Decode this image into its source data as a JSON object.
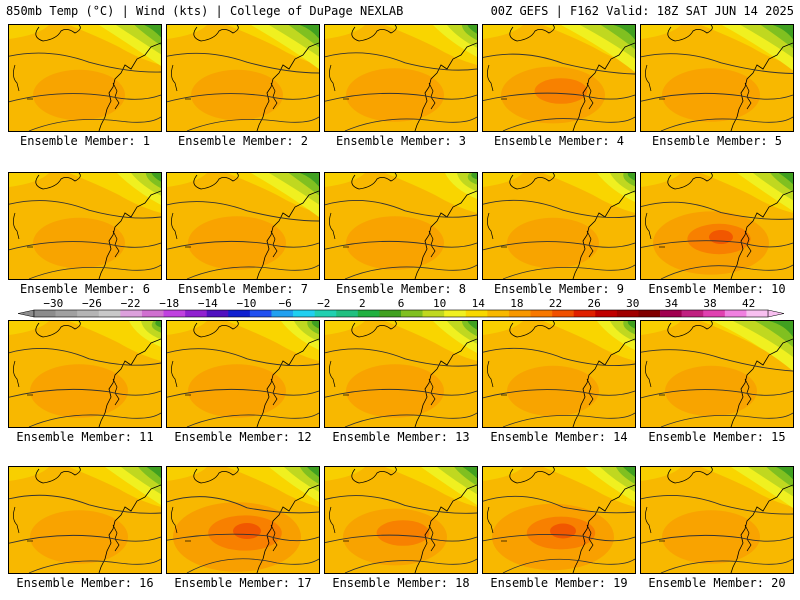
{
  "header": {
    "left": "850mb Temp (°C) | Wind (kts) | College of DuPage NEXLAB",
    "right": "00Z GEFS | F162 Valid: 18Z SAT JUN 14 2025"
  },
  "colorbar": {
    "labels": [
      "-30",
      "-26",
      "-22",
      "-18",
      "-14",
      "-10",
      "-6",
      "-2",
      "2",
      "6",
      "10",
      "14",
      "18",
      "22",
      "26",
      "30",
      "34",
      "38",
      "42"
    ],
    "colors": [
      "#8c8c8c",
      "#a0a0a0",
      "#b4b4b4",
      "#c8c8c8",
      "#dca0dc",
      "#d070d0",
      "#c040e0",
      "#9020d0",
      "#5010c0",
      "#1020d0",
      "#2050f0",
      "#20a0f0",
      "#20d0f0",
      "#20d0b0",
      "#20c080",
      "#20b040",
      "#40a020",
      "#80c020",
      "#c0d820",
      "#f0f020",
      "#f8d800",
      "#f8b800",
      "#f89800",
      "#f87800",
      "#f05000",
      "#e02000",
      "#c00000",
      "#a00000",
      "#800000",
      "#a00050",
      "#c02080",
      "#e040b0",
      "#f080e0",
      "#f8c0f0"
    ]
  },
  "palette": {
    "orange_light": "#f8b800",
    "orange_mid": "#f89800",
    "orange_dark": "#f87800",
    "red_orange": "#f05000",
    "yellow": "#f8d800",
    "yellow_bright": "#f0f020",
    "green_light": "#c0d820",
    "green": "#80c020",
    "green_dark": "#40a020"
  },
  "members": [
    {
      "label": "Ensemble Member: 1",
      "green": 0.7,
      "warm": 0.2
    },
    {
      "label": "Ensemble Member: 2",
      "green": 0.8,
      "warm": 0.2
    },
    {
      "label": "Ensemble Member: 3",
      "green": 0.4,
      "warm": 0.3
    },
    {
      "label": "Ensemble Member: 4",
      "green": 0.9,
      "warm": 0.4
    },
    {
      "label": "Ensemble Member: 5",
      "green": 0.85,
      "warm": 0.3
    },
    {
      "label": "Ensemble Member: 6",
      "green": 0.4,
      "warm": 0.2
    },
    {
      "label": "Ensemble Member: 7",
      "green": 0.8,
      "warm": 0.3
    },
    {
      "label": "Ensemble Member: 8",
      "green": 0.2,
      "warm": 0.3
    },
    {
      "label": "Ensemble Member: 9",
      "green": 0.3,
      "warm": 0.2
    },
    {
      "label": "Ensemble Member: 10",
      "green": 0.6,
      "warm": 0.6
    },
    {
      "label": "Ensemble Member: 11",
      "green": 0.2,
      "warm": 0.3
    },
    {
      "label": "Ensemble Member: 12",
      "green": 0.3,
      "warm": 0.3
    },
    {
      "label": "Ensemble Member: 13",
      "green": 0.4,
      "warm": 0.3
    },
    {
      "label": "Ensemble Member: 14",
      "green": 0.3,
      "warm": 0.2
    },
    {
      "label": "Ensemble Member: 15",
      "green": 1.0,
      "warm": 0.2
    },
    {
      "label": "Ensemble Member: 16",
      "green": 0.6,
      "warm": 0.3
    },
    {
      "label": "Ensemble Member: 17",
      "green": 0.5,
      "warm": 0.8
    },
    {
      "label": "Ensemble Member: 18",
      "green": 0.6,
      "warm": 0.4
    },
    {
      "label": "Ensemble Member: 19",
      "green": 0.5,
      "warm": 0.7
    },
    {
      "label": "Ensemble Member: 20",
      "green": 0.7,
      "warm": 0.3
    }
  ]
}
